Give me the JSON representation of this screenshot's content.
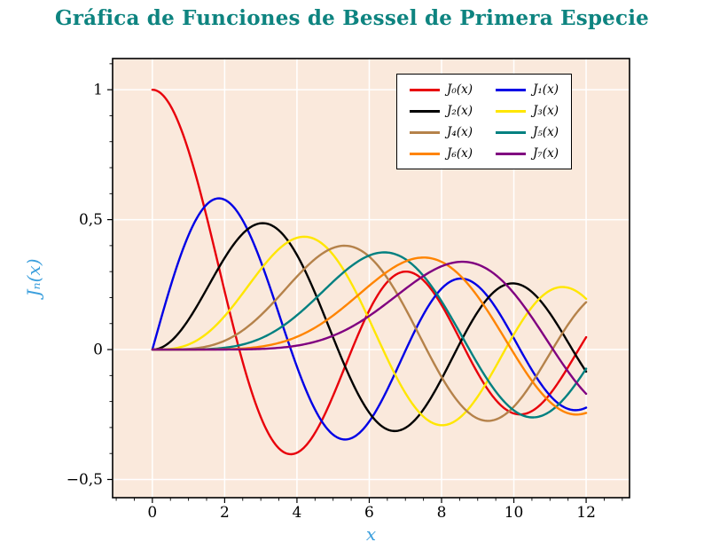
{
  "chart_data": {
    "type": "line",
    "title": "Gráfica de Funciones de Bessel de Primera Especie",
    "xlabel": "x",
    "ylabel": "Jₙ(x)",
    "function_family": "Bessel functions of the first kind Jₙ(x)",
    "x_range": [
      0,
      12
    ],
    "sample_step": 0.05,
    "axis": {
      "xmin": -1.1,
      "xmax": 13.2,
      "ymin": -0.57,
      "ymax": 1.12
    },
    "x_ticks": [
      0,
      2,
      4,
      6,
      8,
      10,
      12
    ],
    "x_tick_labels": [
      "0",
      "2",
      "4",
      "6",
      "8",
      "10",
      "12"
    ],
    "x_minor_step": 0.5,
    "y_ticks": [
      -0.5,
      0,
      0.5,
      1
    ],
    "y_tick_labels": [
      "−0,5",
      "0",
      "0,5",
      "1"
    ],
    "y_minor_step": 0.1,
    "grid": true,
    "legend_position": "top-right",
    "legend_columns": 2,
    "x_values": [
      0,
      1,
      2,
      3,
      4,
      5,
      6,
      7,
      8,
      9,
      10,
      11,
      12
    ],
    "series": [
      {
        "id": "J0",
        "name": "J₀(x)",
        "order": 0,
        "color": "#e8000b",
        "values": [
          1.0,
          0.7652,
          0.2239,
          -0.2601,
          -0.3971,
          -0.1776,
          0.1506,
          0.3001,
          0.1717,
          -0.0903,
          -0.2459,
          -0.1712,
          0.0477
        ]
      },
      {
        "id": "J1",
        "name": "J₁(x)",
        "order": 1,
        "color": "#0000e6",
        "values": [
          0.0,
          0.4401,
          0.5767,
          0.3391,
          -0.066,
          -0.3276,
          -0.2767,
          -0.0047,
          0.2346,
          0.2453,
          0.0435,
          -0.1768,
          -0.2234
        ]
      },
      {
        "id": "J2",
        "name": "J₂(x)",
        "order": 2,
        "color": "#000000",
        "values": [
          0.0,
          0.1149,
          0.3528,
          0.4861,
          0.3641,
          0.0466,
          -0.2429,
          -0.3014,
          -0.113,
          0.1448,
          0.2546,
          0.139,
          -0.0849
        ]
      },
      {
        "id": "J3",
        "name": "J₃(x)",
        "order": 3,
        "color": "#ffe600",
        "values": [
          0.0,
          0.0196,
          0.1289,
          0.3091,
          0.4302,
          0.3648,
          0.1148,
          -0.1676,
          -0.2911,
          -0.1809,
          0.0584,
          0.2273,
          0.1951
        ]
      },
      {
        "id": "J4",
        "name": "J₄(x)",
        "order": 4,
        "color": "#b5824a",
        "values": [
          0.0,
          0.0025,
          0.034,
          0.132,
          0.2811,
          0.3912,
          0.3576,
          0.1578,
          -0.1054,
          -0.2655,
          -0.2196,
          -0.015,
          0.1825
        ]
      },
      {
        "id": "J5",
        "name": "J₅(x)",
        "order": 5,
        "color": "#008080",
        "values": [
          0.0,
          0.0002,
          0.007,
          0.043,
          0.1321,
          0.2611,
          0.3621,
          0.3479,
          0.1858,
          -0.055,
          -0.2341,
          -0.2383,
          -0.0735
        ]
      },
      {
        "id": "J6",
        "name": "J₆(x)",
        "order": 6,
        "color": "#ff8400",
        "values": [
          0.0,
          0.0,
          0.0012,
          0.0114,
          0.0491,
          0.131,
          0.2458,
          0.3392,
          0.3376,
          0.2043,
          -0.0145,
          -0.2016,
          -0.2437
        ]
      },
      {
        "id": "J7",
        "name": "J₇(x)",
        "order": 7,
        "color": "#800080",
        "values": [
          0.0,
          0.0,
          0.0002,
          0.0025,
          0.0152,
          0.0534,
          0.1296,
          0.2336,
          0.3206,
          0.3275,
          0.2167,
          0.0184,
          -0.1703
        ]
      }
    ]
  },
  "colors": {
    "title": "#0e8480",
    "axis_label": "#3b9fdd",
    "plot_bg": "#fae9dc",
    "grid": "#ffffff",
    "frame": "#000000",
    "tick": "#000000",
    "page_bg": "#ffffff"
  }
}
